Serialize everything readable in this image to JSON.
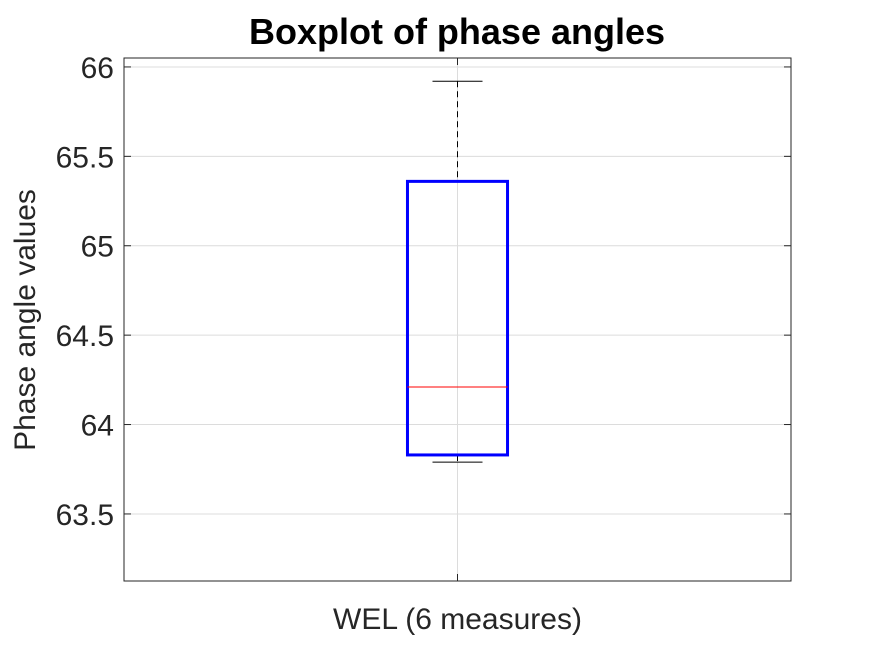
{
  "chart_data": {
    "type": "boxplot",
    "title": "Boxplot of phase angles",
    "xlabel": "",
    "ylabel": "Phase angle values",
    "ylim": [
      63.125,
      66.05
    ],
    "yticks": [
      63.5,
      64,
      64.5,
      65,
      65.5,
      66
    ],
    "ytick_labels": [
      "63.5",
      "64",
      "64.5",
      "65",
      "65.5",
      "66"
    ],
    "categories": [
      "WEL (6 measures)"
    ],
    "grid": true,
    "boxes": [
      {
        "category": "WEL (6 measures)",
        "whisker_low": 63.79,
        "q1": 63.83,
        "median": 64.21,
        "q3": 65.36,
        "whisker_high": 65.92
      }
    ],
    "colors": {
      "box": "#0000ff",
      "median": "#ff0000",
      "whisker": "#000000",
      "grid": "#dcdcdc",
      "axis": "#262626"
    }
  }
}
